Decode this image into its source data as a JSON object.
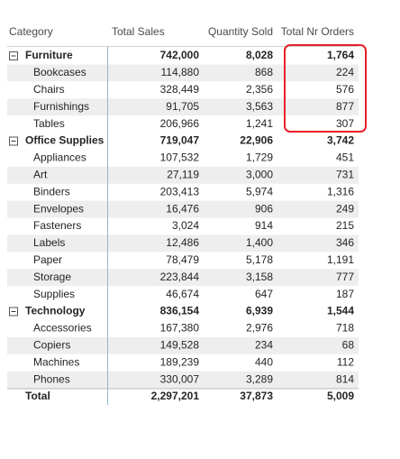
{
  "table": {
    "header": [
      "Category",
      "Total Sales",
      "Quantity Sold",
      "Total Nr Orders"
    ],
    "groups": [
      {
        "name": "Furniture",
        "values": [
          "742,000",
          "8,028",
          "1,764"
        ],
        "items": [
          {
            "name": "Bookcases",
            "values": [
              "114,880",
              "868",
              "224"
            ]
          },
          {
            "name": "Chairs",
            "values": [
              "328,449",
              "2,356",
              "576"
            ]
          },
          {
            "name": "Furnishings",
            "values": [
              "91,705",
              "3,563",
              "877"
            ]
          },
          {
            "name": "Tables",
            "values": [
              "206,966",
              "1,241",
              "307"
            ]
          }
        ]
      },
      {
        "name": "Office Supplies",
        "values": [
          "719,047",
          "22,906",
          "3,742"
        ],
        "items": [
          {
            "name": "Appliances",
            "values": [
              "107,532",
              "1,729",
              "451"
            ]
          },
          {
            "name": "Art",
            "values": [
              "27,119",
              "3,000",
              "731"
            ]
          },
          {
            "name": "Binders",
            "values": [
              "203,413",
              "5,974",
              "1,316"
            ]
          },
          {
            "name": "Envelopes",
            "values": [
              "16,476",
              "906",
              "249"
            ]
          },
          {
            "name": "Fasteners",
            "values": [
              "3,024",
              "914",
              "215"
            ]
          },
          {
            "name": "Labels",
            "values": [
              "12,486",
              "1,400",
              "346"
            ]
          },
          {
            "name": "Paper",
            "values": [
              "78,479",
              "5,178",
              "1,191"
            ]
          },
          {
            "name": "Storage",
            "values": [
              "223,844",
              "3,158",
              "777"
            ]
          },
          {
            "name": "Supplies",
            "values": [
              "46,674",
              "647",
              "187"
            ]
          }
        ]
      },
      {
        "name": "Technology",
        "values": [
          "836,154",
          "6,939",
          "1,544"
        ],
        "items": [
          {
            "name": "Accessories",
            "values": [
              "167,380",
              "2,976",
              "718"
            ]
          },
          {
            "name": "Copiers",
            "values": [
              "149,528",
              "234",
              "68"
            ]
          },
          {
            "name": "Machines",
            "values": [
              "189,239",
              "440",
              "112"
            ]
          },
          {
            "name": "Phones",
            "values": [
              "330,007",
              "3,289",
              "814"
            ]
          }
        ]
      }
    ],
    "total": {
      "name": "Total",
      "values": [
        "2,297,201",
        "37,873",
        "5,009"
      ]
    }
  }
}
